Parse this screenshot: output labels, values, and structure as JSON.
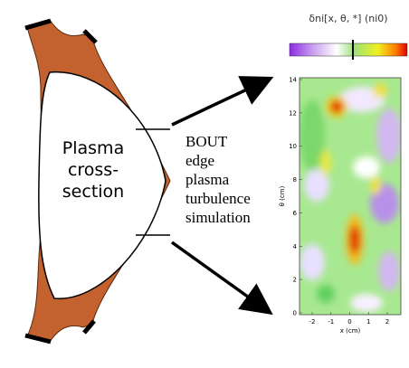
{
  "left_label": {
    "lines": [
      "Plasma",
      "cross-",
      "section"
    ]
  },
  "middle_label": {
    "lines": [
      "BOUT",
      "edge",
      "plasma",
      "turbulence",
      "simulation"
    ]
  },
  "plot": {
    "title": "δni[x, θ, *] (ni0)",
    "y_axis": {
      "label": "θ (cm)",
      "ticks": [
        "0",
        "2",
        "4",
        "6",
        "8",
        "10",
        "12",
        "14"
      ]
    },
    "x_axis": {
      "label": "x (cm)",
      "ticks": [
        "-2",
        "-1",
        "0",
        "1",
        "2"
      ]
    }
  }
}
